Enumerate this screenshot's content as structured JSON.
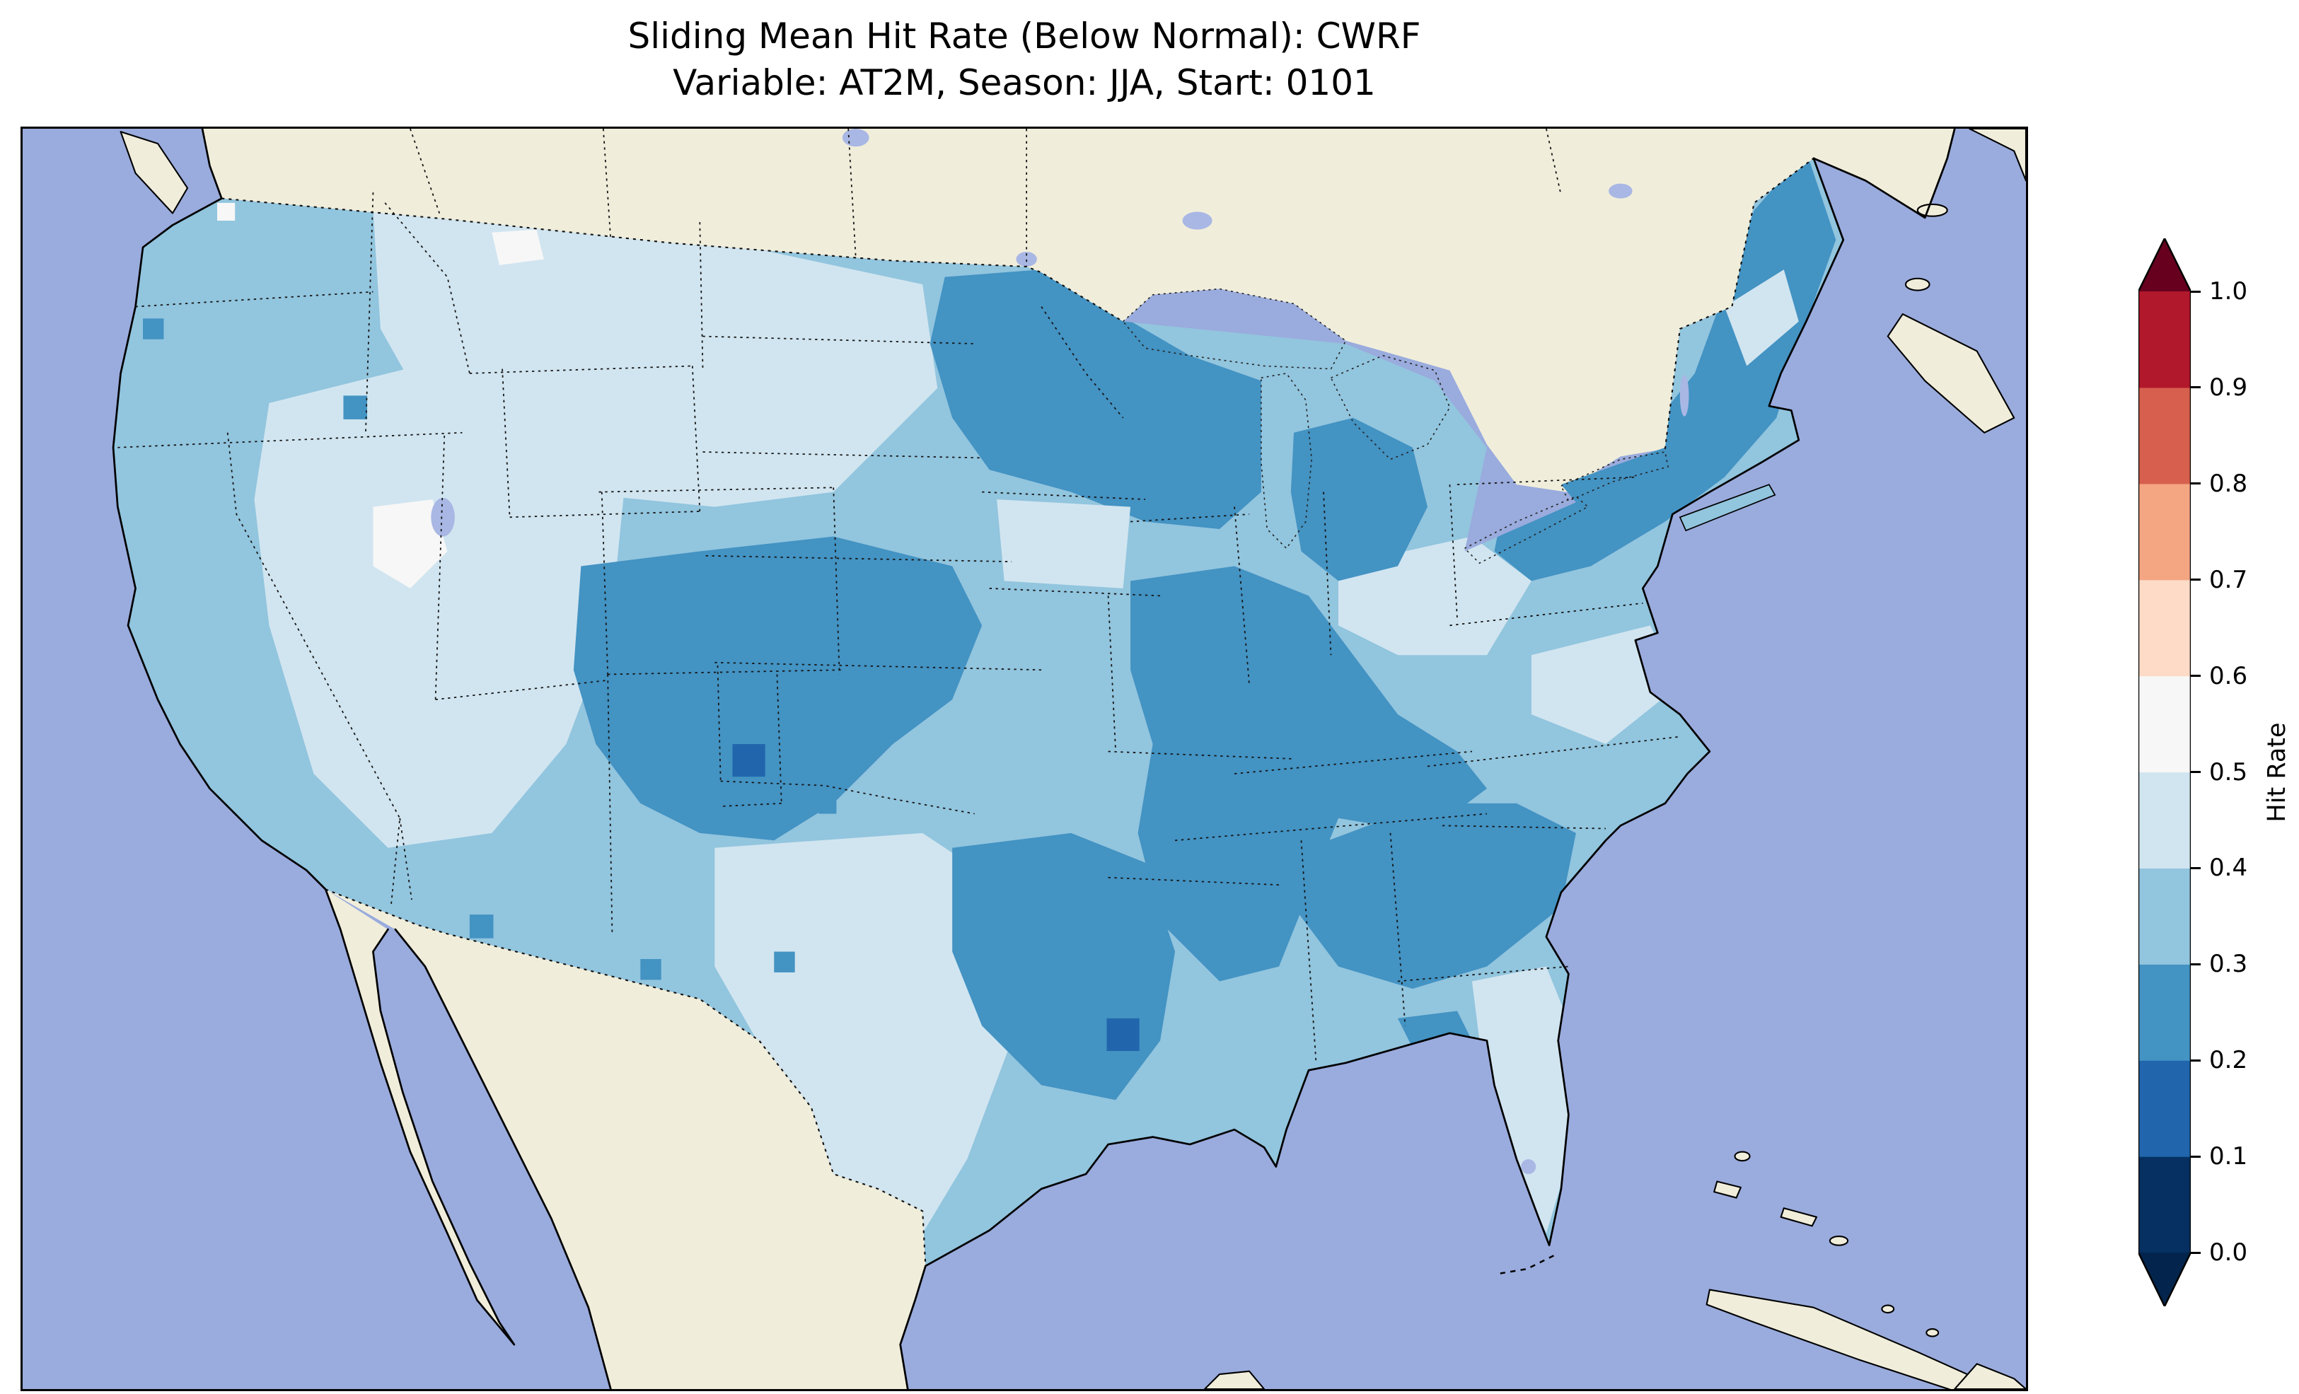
{
  "title": {
    "line1": "Sliding Mean Hit Rate (Below Normal): CWRF",
    "line2": "Variable: AT2M, Season: JJA, Start: 0101"
  },
  "chart_data": {
    "type": "heatmap",
    "title": "Sliding Mean Hit Rate (Below Normal): CWRF",
    "subtitle": "Variable: AT2M, Season: JJA, Start: 0101",
    "model": "CWRF",
    "metric": "Sliding Mean Hit Rate (Below Normal)",
    "variable": "AT2M",
    "season": "JJA",
    "start": "0101",
    "region": "Continental United States (Lambert Conformal projection with Canada, Mexico, Gulf of Mexico and Caribbean visible)",
    "colorbar": {
      "label": "Hit Rate",
      "orientation": "vertical",
      "position": "right",
      "extend": "both",
      "ticks": [
        0.0,
        0.1,
        0.2,
        0.3,
        0.4,
        0.5,
        0.6,
        0.7,
        0.8,
        0.9,
        1.0
      ],
      "tick_labels": [
        "0.0",
        "0.1",
        "0.2",
        "0.3",
        "0.4",
        "0.5",
        "0.6",
        "0.7",
        "0.8",
        "0.9",
        "1.0"
      ],
      "bin_colors": [
        "#053061",
        "#2166ac",
        "#4393c3",
        "#92c5de",
        "#d1e5f0",
        "#f7f7f7",
        "#fddbc7",
        "#f4a582",
        "#d6604d",
        "#b2182b"
      ],
      "under_color": "#03254d",
      "over_color": "#67001f"
    },
    "observed_value_range": [
      0.1,
      0.6
    ],
    "region_values_approx": {
      "pacific_northwest": 0.35,
      "california": 0.35,
      "great_basin_nevada_utah": 0.45,
      "nevada_utah_white_patch": 0.55,
      "northern_montana_white_patch": 0.55,
      "northern_plains_montana_dakotas": 0.45,
      "upper_midwest_minnesota_wisconsin_michigan": 0.25,
      "central_plains_colorado_kansas_oklahoma_texas_panhandle": 0.25,
      "southwest_colorado_spot": 0.15,
      "mississippi_valley_missouri_arkansas_tennessee": 0.25,
      "louisiana_east_texas": 0.25,
      "central_louisiana_spot": 0.15,
      "southeast_georgia_alabama_carolinas": 0.25,
      "ohio_valley": 0.45,
      "mid_atlantic": 0.35,
      "northeast_new_england_new_york": 0.25,
      "florida_peninsula": 0.35,
      "south_texas": 0.45
    }
  },
  "map": {
    "colors": {
      "background": "#ffffff",
      "ocean": "#9aabdd",
      "land": "#f0eedb",
      "lake": "#a9b7e4",
      "coast": "#000000"
    }
  }
}
